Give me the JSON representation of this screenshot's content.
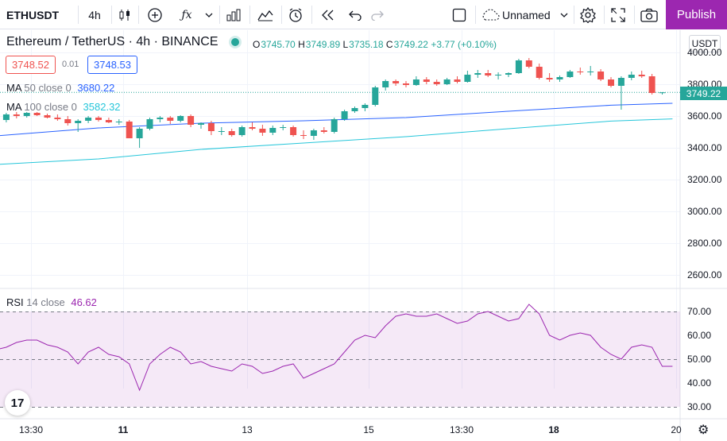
{
  "toolbar": {
    "symbol": "ETHUSDT",
    "interval": "4h",
    "layout_name": "Unnamed",
    "publish_label": "Publish",
    "icons": [
      "candles-icon",
      "add-indicator-icon",
      "fx-icon",
      "chevron-down-icon",
      "bars-icon",
      "line-chart-icon",
      "alarm-icon",
      "replay-icon",
      "undo-icon",
      "redo-icon",
      "square-icon",
      "cloud-icon",
      "gear-icon",
      "fullscreen-icon",
      "camera-icon"
    ]
  },
  "legend": {
    "pair": "Ethereum / TetherUS",
    "sep1": "·",
    "timeframe": "4h",
    "sep2": "·",
    "exchange": "BINANCE",
    "o_key": "O",
    "o": "3745.70",
    "h_key": "H",
    "h": "3749.89",
    "l_key": "L",
    "l": "3735.18",
    "c_key": "C",
    "c": "3749.22",
    "change": "+3.77 (+0.10%)"
  },
  "trade": {
    "sell": "3748.52",
    "spread": "0.01",
    "buy": "3748.53"
  },
  "indicators": {
    "ma50": {
      "name": "MA",
      "params": "50 close 0",
      "value": "3680.22",
      "color": "#2962ff"
    },
    "ma100": {
      "name": "MA",
      "params": "100 close 0",
      "value": "3582.32",
      "color": "#26c6da"
    },
    "rsi": {
      "name": "RSI",
      "params": "14 close",
      "value": "46.62",
      "color": "#9c27b0"
    }
  },
  "price_axis": {
    "currency": "USDT",
    "last_price": "3749.22",
    "ticks": [
      "4000.00",
      "3800.00",
      "3600.00",
      "3400.00",
      "3200.00",
      "3000.00",
      "2800.00",
      "2600.00"
    ]
  },
  "rsi_axis": {
    "ticks": [
      "70.00",
      "60.00",
      "50.00",
      "40.00",
      "30.00"
    ]
  },
  "time_axis": {
    "ticks": [
      "13:30",
      "11",
      "13",
      "15",
      "13:30",
      "18",
      "20"
    ]
  },
  "colors": {
    "up": "#26a69a",
    "down": "#ef5350",
    "accent": "#9c27b0"
  },
  "chart_data": {
    "type": "candlestick",
    "price_range": [
      2500,
      4100
    ],
    "candles": [
      [
        3625,
        3640,
        3560,
        3575
      ],
      [
        3575,
        3620,
        3560,
        3610
      ],
      [
        3610,
        3625,
        3585,
        3600
      ],
      [
        3600,
        3625,
        3590,
        3620
      ],
      [
        3620,
        3625,
        3600,
        3605
      ],
      [
        3605,
        3615,
        3585,
        3590
      ],
      [
        3590,
        3610,
        3570,
        3580
      ],
      [
        3580,
        3600,
        3540,
        3555
      ],
      [
        3555,
        3580,
        3500,
        3570
      ],
      [
        3570,
        3600,
        3555,
        3590
      ],
      [
        3590,
        3600,
        3565,
        3575
      ],
      [
        3575,
        3590,
        3555,
        3560
      ],
      [
        3560,
        3580,
        3545,
        3565
      ],
      [
        3565,
        3575,
        3460,
        3460
      ],
      [
        3460,
        3530,
        3400,
        3520
      ],
      [
        3520,
        3590,
        3510,
        3580
      ],
      [
        3580,
        3600,
        3560,
        3590
      ],
      [
        3590,
        3600,
        3550,
        3570
      ],
      [
        3570,
        3605,
        3560,
        3600
      ],
      [
        3600,
        3610,
        3530,
        3545
      ],
      [
        3545,
        3560,
        3520,
        3555
      ],
      [
        3555,
        3570,
        3480,
        3505
      ],
      [
        3505,
        3530,
        3480,
        3505
      ],
      [
        3505,
        3520,
        3470,
        3480
      ],
      [
        3480,
        3540,
        3470,
        3530
      ],
      [
        3530,
        3560,
        3510,
        3520
      ],
      [
        3520,
        3545,
        3475,
        3495
      ],
      [
        3495,
        3540,
        3480,
        3525
      ],
      [
        3525,
        3545,
        3510,
        3530
      ],
      [
        3530,
        3540,
        3470,
        3480
      ],
      [
        3480,
        3510,
        3455,
        3475
      ],
      [
        3475,
        3520,
        3450,
        3510
      ],
      [
        3510,
        3530,
        3490,
        3500
      ],
      [
        3500,
        3590,
        3490,
        3580
      ],
      [
        3580,
        3640,
        3570,
        3630
      ],
      [
        3630,
        3660,
        3620,
        3650
      ],
      [
        3650,
        3680,
        3630,
        3670
      ],
      [
        3670,
        3790,
        3660,
        3780
      ],
      [
        3780,
        3830,
        3760,
        3820
      ],
      [
        3820,
        3830,
        3790,
        3805
      ],
      [
        3805,
        3820,
        3780,
        3795
      ],
      [
        3795,
        3850,
        3790,
        3830
      ],
      [
        3830,
        3845,
        3800,
        3815
      ],
      [
        3815,
        3830,
        3790,
        3800
      ],
      [
        3800,
        3840,
        3795,
        3830
      ],
      [
        3830,
        3850,
        3805,
        3815
      ],
      [
        3815,
        3885,
        3810,
        3860
      ],
      [
        3860,
        3890,
        3840,
        3870
      ],
      [
        3870,
        3890,
        3845,
        3855
      ],
      [
        3855,
        3875,
        3830,
        3860
      ],
      [
        3860,
        3875,
        3845,
        3870
      ],
      [
        3870,
        3960,
        3865,
        3950
      ],
      [
        3950,
        3965,
        3900,
        3910
      ],
      [
        3910,
        3930,
        3830,
        3840
      ],
      [
        3840,
        3870,
        3815,
        3830
      ],
      [
        3830,
        3855,
        3815,
        3845
      ],
      [
        3845,
        3890,
        3840,
        3880
      ],
      [
        3880,
        3905,
        3860,
        3875
      ],
      [
        3875,
        3915,
        3855,
        3880
      ],
      [
        3880,
        3895,
        3820,
        3830
      ],
      [
        3830,
        3845,
        3780,
        3790
      ],
      [
        3790,
        3850,
        3640,
        3840
      ],
      [
        3840,
        3880,
        3825,
        3860
      ],
      [
        3860,
        3885,
        3840,
        3850
      ],
      [
        3850,
        3865,
        3735,
        3745
      ],
      [
        3745,
        3750,
        3735,
        3749
      ]
    ],
    "ma50": [
      [
        0,
        3475
      ],
      [
        10,
        3525
      ],
      [
        20,
        3555
      ],
      [
        30,
        3570
      ],
      [
        40,
        3590
      ],
      [
        50,
        3630
      ],
      [
        60,
        3668
      ],
      [
        66,
        3680
      ]
    ],
    "ma100": [
      [
        0,
        3295
      ],
      [
        10,
        3330
      ],
      [
        20,
        3390
      ],
      [
        30,
        3430
      ],
      [
        40,
        3470
      ],
      [
        50,
        3520
      ],
      [
        60,
        3568
      ],
      [
        66,
        3582
      ]
    ],
    "rsi": [
      54,
      55,
      57,
      58,
      58,
      56,
      55,
      53,
      48,
      53,
      55,
      52,
      51,
      48,
      37,
      48,
      52,
      55,
      53,
      48,
      49,
      47,
      46,
      45,
      48,
      47,
      44,
      45,
      47,
      48,
      42,
      44,
      46,
      48,
      53,
      58,
      60,
      59,
      64,
      68,
      69,
      68,
      68,
      69,
      67,
      65,
      66,
      69,
      70,
      68,
      66,
      67,
      73,
      69,
      60,
      58,
      60,
      61,
      60,
      55,
      52,
      50,
      55,
      56,
      55,
      47,
      47
    ],
    "rsi_range": [
      25,
      75
    ],
    "rsi_levels": [
      70,
      50,
      30
    ]
  }
}
